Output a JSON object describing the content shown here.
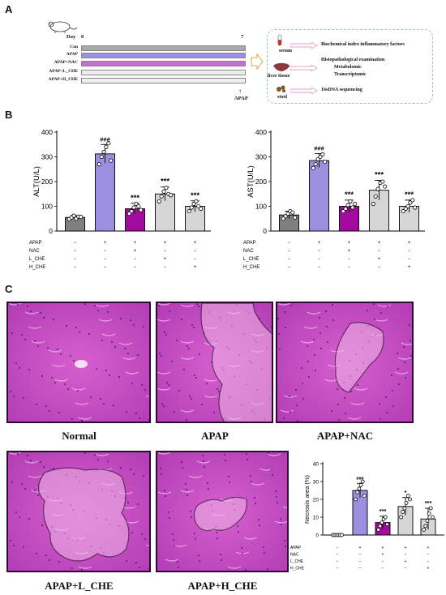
{
  "panel_a": {
    "letter": "A",
    "day_label": "Day",
    "day_start": "0",
    "day_end": "7",
    "groups": [
      {
        "label": "Con",
        "color": "#a8a8a8"
      },
      {
        "label": "APAP",
        "color": "#9c8fe0"
      },
      {
        "label": "APAP+NAC",
        "color": "#c96bd6"
      },
      {
        "label": "APAP+L_CHE",
        "color": "#eeeeee"
      },
      {
        "label": "APAP+H_CHE",
        "color": "#eeeeee"
      }
    ],
    "apap_marker": "APAP",
    "samples": [
      {
        "label": "serum",
        "results": [
          "Biochemical index inflammatory factors"
        ]
      },
      {
        "label": "liver tissue",
        "results": [
          "Histopathological examination",
          "Metabolomic",
          "Transcriptomic"
        ]
      },
      {
        "label": "stool",
        "results": [
          "16sDNA sequencing"
        ]
      }
    ]
  },
  "panel_b": {
    "letter": "B"
  },
  "panel_c": {
    "letter": "C",
    "images": [
      {
        "label": "Normal"
      },
      {
        "label": "APAP"
      },
      {
        "label": "APAP+NAC"
      },
      {
        "label": "APAP+L_CHE"
      },
      {
        "label": "APAP+H_CHE"
      }
    ]
  },
  "chart_data": [
    {
      "type": "bar",
      "ylabel": "ALT(U/L)",
      "ylim": [
        0,
        400
      ],
      "yticks": [
        0,
        100,
        200,
        300,
        400
      ],
      "categories": [
        "Con",
        "APAP",
        "APAP+NAC",
        "APAP+L_CHE",
        "APAP+H_CHE"
      ],
      "values": [
        55,
        312,
        90,
        150,
        100
      ],
      "errors": [
        8,
        38,
        22,
        28,
        22
      ],
      "colors": [
        "#808080",
        "#9c8fe0",
        "#a30a9e",
        "#d6d6d6",
        "#d6d6d6"
      ],
      "significance": [
        "",
        "###",
        "***",
        "***",
        "***"
      ],
      "points": [
        [
          48,
          55,
          62,
          50,
          58,
          57
        ],
        [
          270,
          300,
          320,
          340,
          355,
          285
        ],
        [
          70,
          80,
          95,
          110,
          100,
          85
        ],
        [
          120,
          140,
          160,
          175,
          150,
          145
        ],
        [
          80,
          95,
          110,
          120,
          100,
          90
        ]
      ],
      "condition_rows": [
        {
          "name": "APAP",
          "signs": [
            "−",
            "+",
            "+",
            "+",
            "+"
          ]
        },
        {
          "name": "NAC",
          "signs": [
            "−",
            "−",
            "+",
            "−",
            "−"
          ]
        },
        {
          "name": "L_CHE",
          "signs": [
            "−",
            "−",
            "−",
            "+",
            "−"
          ]
        },
        {
          "name": "H_CHE",
          "signs": [
            "−",
            "−",
            "−",
            "−",
            "+"
          ]
        }
      ]
    },
    {
      "type": "bar",
      "ylabel": "AST(U/L)",
      "ylim": [
        0,
        400
      ],
      "yticks": [
        0,
        100,
        200,
        300,
        400
      ],
      "categories": [
        "Con",
        "APAP",
        "APAP+NAC",
        "APAP+L_CHE",
        "APAP+H_CHE"
      ],
      "values": [
        65,
        285,
        100,
        165,
        100
      ],
      "errors": [
        15,
        28,
        25,
        40,
        25
      ],
      "colors": [
        "#808080",
        "#9c8fe0",
        "#a30a9e",
        "#d6d6d6",
        "#d6d6d6"
      ],
      "significance": [
        "",
        "###",
        "***",
        "***",
        "***"
      ],
      "points": [
        [
          50,
          60,
          70,
          80,
          75,
          55
        ],
        [
          255,
          270,
          290,
          300,
          310,
          280
        ],
        [
          80,
          90,
          105,
          120,
          95,
          110
        ],
        [
          110,
          140,
          170,
          195,
          200,
          180
        ],
        [
          80,
          90,
          100,
          115,
          125,
          95
        ]
      ],
      "condition_rows": [
        {
          "name": "APAP",
          "signs": [
            "−",
            "+",
            "+",
            "+",
            "+"
          ]
        },
        {
          "name": "NAC",
          "signs": [
            "−",
            "−",
            "+",
            "−",
            "−"
          ]
        },
        {
          "name": "L_CHE",
          "signs": [
            "−",
            "−",
            "−",
            "+",
            "−"
          ]
        },
        {
          "name": "H_CHE",
          "signs": [
            "−",
            "−",
            "−",
            "−",
            "+"
          ]
        }
      ]
    },
    {
      "type": "bar",
      "ylabel": "Necrosis area (%)",
      "ylim": [
        0,
        40
      ],
      "yticks": [
        0,
        10,
        20,
        30,
        40
      ],
      "categories": [
        "Con",
        "APAP",
        "APAP+NAC",
        "APAP+L_CHE",
        "APAP+H_CHE"
      ],
      "values": [
        0,
        25,
        7,
        16,
        9
      ],
      "errors": [
        0.5,
        4,
        3.5,
        5,
        6
      ],
      "colors": [
        "#808080",
        "#9c8fe0",
        "#a30a9e",
        "#d6d6d6",
        "#d6d6d6"
      ],
      "significance": [
        "",
        "###",
        "***",
        "*",
        "***"
      ],
      "points": [
        [
          0,
          0,
          0,
          0,
          0,
          0
        ],
        [
          20,
          24,
          26,
          28,
          30,
          22
        ],
        [
          3,
          5,
          7,
          9,
          10,
          6
        ],
        [
          10,
          13,
          15,
          18,
          22,
          20
        ],
        [
          3,
          5,
          8,
          12,
          15,
          10
        ]
      ],
      "condition_rows": [
        {
          "name": "APAP",
          "signs": [
            "−",
            "+",
            "+",
            "+",
            "+"
          ]
        },
        {
          "name": "NAC",
          "signs": [
            "−",
            "−",
            "+",
            "−",
            "−"
          ]
        },
        {
          "name": "L_CHE",
          "signs": [
            "−",
            "−",
            "−",
            "+",
            "−"
          ]
        },
        {
          "name": "H_CHE",
          "signs": [
            "−",
            "−",
            "−",
            "−",
            "+"
          ]
        }
      ]
    }
  ]
}
